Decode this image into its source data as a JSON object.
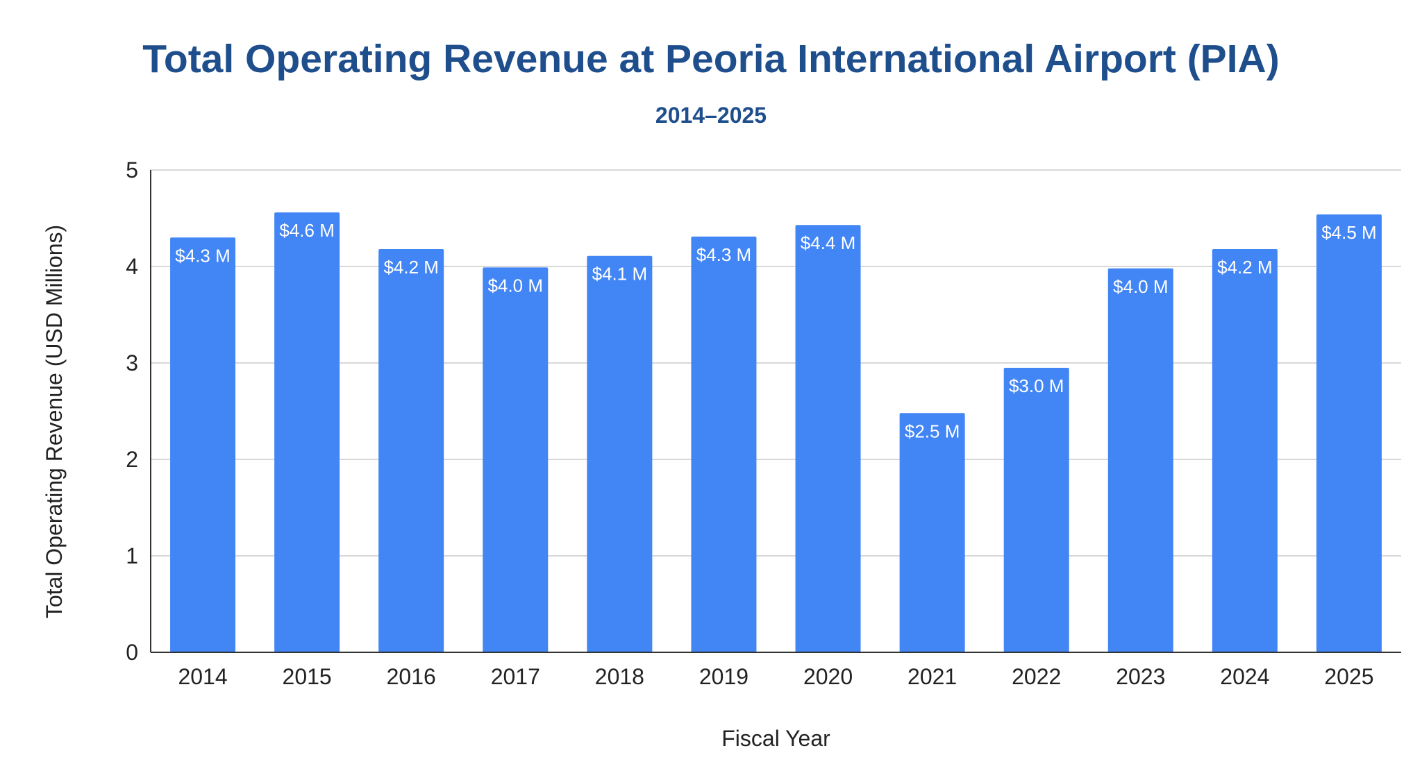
{
  "chart_data": {
    "type": "bar",
    "title": "Total Operating Revenue at Peoria International Airport (PIA)",
    "subtitle": "2014–2025",
    "xlabel": "Fiscal Year",
    "ylabel": "Total Operating Revenue (USD Millions)",
    "ylim": [
      0,
      5
    ],
    "yticks": [
      0,
      1,
      2,
      3,
      4,
      5
    ],
    "grid": true,
    "bar_color": "#4285f4",
    "categories": [
      "2014",
      "2015",
      "2016",
      "2017",
      "2018",
      "2019",
      "2020",
      "2021",
      "2022",
      "2023",
      "2024",
      "2025"
    ],
    "values": [
      4.3,
      4.56,
      4.18,
      3.99,
      4.11,
      4.31,
      4.43,
      2.48,
      2.95,
      3.98,
      4.18,
      4.54
    ],
    "data_labels": [
      "$4.3 M",
      "$4.6 M",
      "$4.2 M",
      "$4.0 M",
      "$4.1 M",
      "$4.3 M",
      "$4.4 M",
      "$2.5 M",
      "$3.0 M",
      "$4.0 M",
      "$4.2 M",
      "$4.5 M"
    ]
  }
}
